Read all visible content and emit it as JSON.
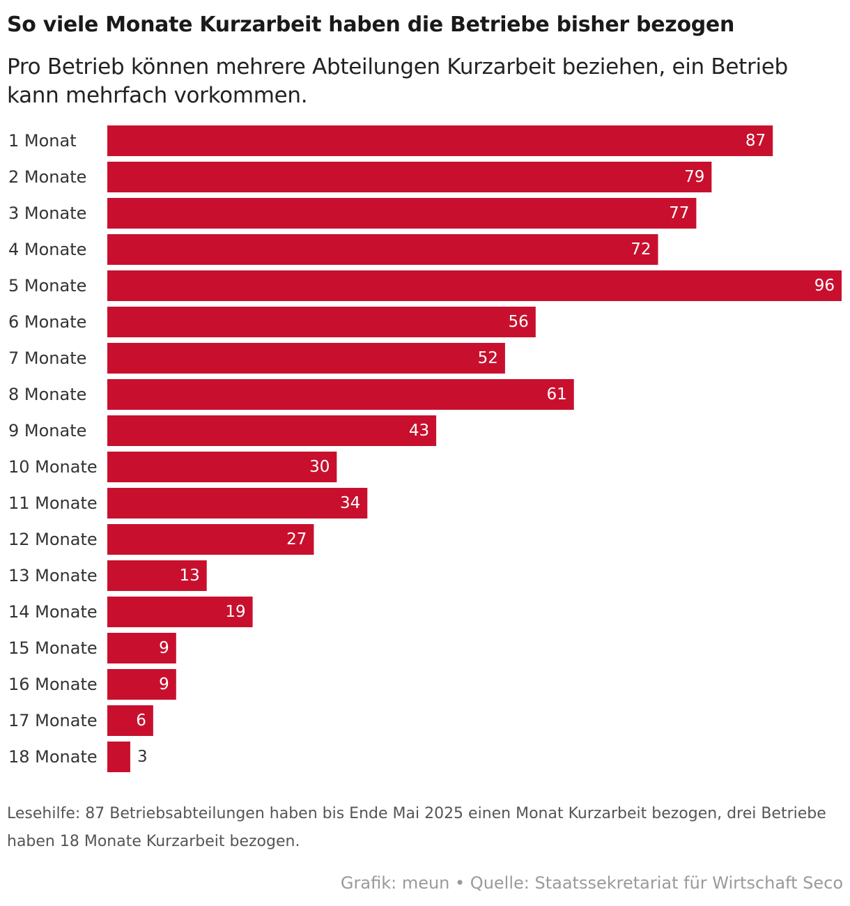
{
  "title": "So viele Monate Kurzarbeit haben die Betriebe bisher bezogen",
  "subtitle": "Pro Betrieb können mehrere Abteilungen Kurzarbeit beziehen, ein Betrieb kann mehrfach vorkommen.",
  "footnote": "Lesehilfe: 87 Betriebsabteilungen haben bis Ende Mai 2025 einen Monat Kurzarbeit bezogen, drei Betriebe haben 18 Monate Kurzarbeit bezogen.",
  "source": "Grafik: meun • Quelle: Staatssekretariat für Wirtschaft Seco",
  "colors": {
    "bar": "#c8102e",
    "label_inside": "#ffffff",
    "label_outside": "#333333"
  },
  "chart_data": {
    "type": "bar",
    "orientation": "horizontal",
    "categories": [
      "1 Monat",
      "2 Monate",
      "3 Monate",
      "4 Monate",
      "5 Monate",
      "6 Monate",
      "7 Monate",
      "8 Monate",
      "9 Monate",
      "10 Monate",
      "11 Monate",
      "12 Monate",
      "13 Monate",
      "14 Monate",
      "15 Monate",
      "16 Monate",
      "17 Monate",
      "18 Monate"
    ],
    "values": [
      87,
      79,
      77,
      72,
      96,
      56,
      52,
      61,
      43,
      30,
      34,
      27,
      13,
      19,
      9,
      9,
      6,
      3
    ],
    "xlim": [
      0,
      96
    ],
    "grid": false,
    "data_labels": true
  }
}
